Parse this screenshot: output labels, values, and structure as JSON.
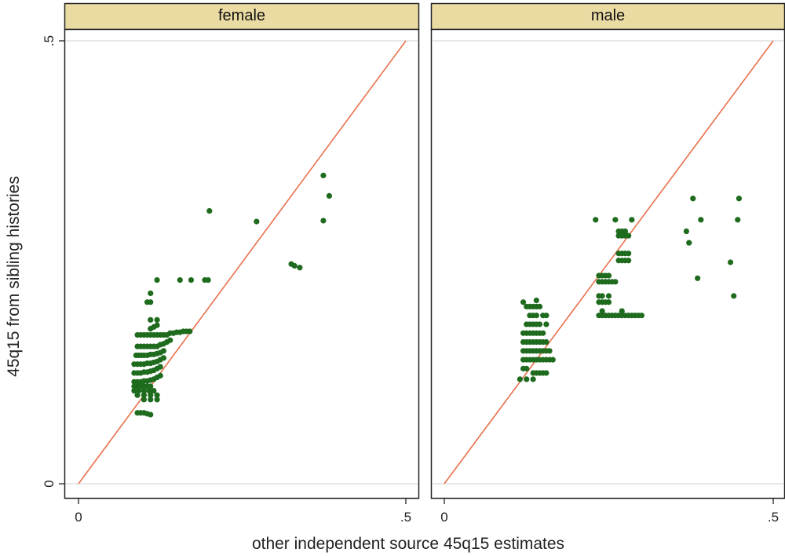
{
  "chart_data": {
    "type": "scatter",
    "xlabel": "other independent source 45q15 estimates",
    "ylabel": "45q15 from sibling histories",
    "xlim": [
      0,
      0.5
    ],
    "ylim": [
      0,
      0.5
    ],
    "x_ticks": [
      {
        "value": 0,
        "label": "0"
      },
      {
        "value": 0.5,
        "label": ".5"
      }
    ],
    "y_ticks": [
      {
        "value": 0,
        "label": "0"
      },
      {
        "value": 0.5,
        "label": ".5"
      }
    ],
    "reference_line": {
      "type": "identity",
      "from": [
        0,
        0
      ],
      "to": [
        0.5,
        0.5
      ],
      "color": "#e8704c"
    },
    "marker_color": "#1e6b1e",
    "header_color": "#eadba3",
    "panels": [
      {
        "title": "female",
        "points": [
          [
            0.09,
            0.168
          ],
          [
            0.095,
            0.168
          ],
          [
            0.1,
            0.168
          ],
          [
            0.105,
            0.168
          ],
          [
            0.11,
            0.168
          ],
          [
            0.115,
            0.168
          ],
          [
            0.12,
            0.168
          ],
          [
            0.125,
            0.168
          ],
          [
            0.13,
            0.168
          ],
          [
            0.135,
            0.168
          ],
          [
            0.14,
            0.17
          ],
          [
            0.145,
            0.17
          ],
          [
            0.15,
            0.171
          ],
          [
            0.155,
            0.171
          ],
          [
            0.16,
            0.172
          ],
          [
            0.165,
            0.172
          ],
          [
            0.17,
            0.172
          ],
          [
            0.09,
            0.155
          ],
          [
            0.095,
            0.155
          ],
          [
            0.1,
            0.155
          ],
          [
            0.105,
            0.155
          ],
          [
            0.11,
            0.155
          ],
          [
            0.115,
            0.155
          ],
          [
            0.12,
            0.155
          ],
          [
            0.125,
            0.157
          ],
          [
            0.13,
            0.158
          ],
          [
            0.135,
            0.16
          ],
          [
            0.14,
            0.162
          ],
          [
            0.088,
            0.145
          ],
          [
            0.092,
            0.145
          ],
          [
            0.096,
            0.145
          ],
          [
            0.1,
            0.145
          ],
          [
            0.105,
            0.145
          ],
          [
            0.11,
            0.146
          ],
          [
            0.115,
            0.146
          ],
          [
            0.12,
            0.147
          ],
          [
            0.125,
            0.148
          ],
          [
            0.13,
            0.15
          ],
          [
            0.085,
            0.135
          ],
          [
            0.09,
            0.135
          ],
          [
            0.095,
            0.135
          ],
          [
            0.1,
            0.135
          ],
          [
            0.105,
            0.136
          ],
          [
            0.11,
            0.136
          ],
          [
            0.115,
            0.137
          ],
          [
            0.12,
            0.138
          ],
          [
            0.125,
            0.14
          ],
          [
            0.13,
            0.142
          ],
          [
            0.085,
            0.125
          ],
          [
            0.09,
            0.125
          ],
          [
            0.095,
            0.125
          ],
          [
            0.1,
            0.126
          ],
          [
            0.105,
            0.126
          ],
          [
            0.11,
            0.127
          ],
          [
            0.115,
            0.128
          ],
          [
            0.12,
            0.13
          ],
          [
            0.125,
            0.132
          ],
          [
            0.085,
            0.115
          ],
          [
            0.09,
            0.115
          ],
          [
            0.095,
            0.115
          ],
          [
            0.1,
            0.116
          ],
          [
            0.105,
            0.116
          ],
          [
            0.11,
            0.117
          ],
          [
            0.115,
            0.118
          ],
          [
            0.12,
            0.12
          ],
          [
            0.125,
            0.122
          ],
          [
            0.085,
            0.11
          ],
          [
            0.09,
            0.11
          ],
          [
            0.095,
            0.11
          ],
          [
            0.1,
            0.11
          ],
          [
            0.105,
            0.11
          ],
          [
            0.11,
            0.11
          ],
          [
            0.085,
            0.105
          ],
          [
            0.092,
            0.105
          ],
          [
            0.1,
            0.105
          ],
          [
            0.108,
            0.105
          ],
          [
            0.115,
            0.105
          ],
          [
            0.09,
            0.1
          ],
          [
            0.1,
            0.1
          ],
          [
            0.11,
            0.1
          ],
          [
            0.12,
            0.1
          ],
          [
            0.1,
            0.095
          ],
          [
            0.11,
            0.095
          ],
          [
            0.12,
            0.095
          ],
          [
            0.11,
            0.175
          ],
          [
            0.115,
            0.177
          ],
          [
            0.12,
            0.179
          ],
          [
            0.11,
            0.185
          ],
          [
            0.12,
            0.185
          ],
          [
            0.105,
            0.205
          ],
          [
            0.11,
            0.205
          ],
          [
            0.11,
            0.215
          ],
          [
            0.12,
            0.23
          ],
          [
            0.155,
            0.23
          ],
          [
            0.172,
            0.23
          ],
          [
            0.193,
            0.23
          ],
          [
            0.198,
            0.23
          ],
          [
            0.09,
            0.08
          ],
          [
            0.095,
            0.08
          ],
          [
            0.1,
            0.08
          ],
          [
            0.105,
            0.079
          ],
          [
            0.11,
            0.078
          ],
          [
            0.2,
            0.308
          ],
          [
            0.272,
            0.296
          ],
          [
            0.325,
            0.248
          ],
          [
            0.33,
            0.246
          ],
          [
            0.338,
            0.244
          ],
          [
            0.374,
            0.348
          ],
          [
            0.383,
            0.325
          ],
          [
            0.374,
            0.297
          ]
        ]
      },
      {
        "title": "male",
        "points": [
          [
            0.12,
            0.14
          ],
          [
            0.125,
            0.14
          ],
          [
            0.13,
            0.14
          ],
          [
            0.135,
            0.14
          ],
          [
            0.14,
            0.14
          ],
          [
            0.145,
            0.14
          ],
          [
            0.15,
            0.14
          ],
          [
            0.155,
            0.14
          ],
          [
            0.16,
            0.14
          ],
          [
            0.165,
            0.14
          ],
          [
            0.12,
            0.15
          ],
          [
            0.125,
            0.15
          ],
          [
            0.13,
            0.15
          ],
          [
            0.135,
            0.15
          ],
          [
            0.14,
            0.15
          ],
          [
            0.145,
            0.15
          ],
          [
            0.15,
            0.15
          ],
          [
            0.155,
            0.15
          ],
          [
            0.16,
            0.15
          ],
          [
            0.12,
            0.16
          ],
          [
            0.125,
            0.16
          ],
          [
            0.13,
            0.16
          ],
          [
            0.135,
            0.16
          ],
          [
            0.14,
            0.16
          ],
          [
            0.145,
            0.16
          ],
          [
            0.15,
            0.16
          ],
          [
            0.155,
            0.16
          ],
          [
            0.12,
            0.17
          ],
          [
            0.125,
            0.17
          ],
          [
            0.13,
            0.17
          ],
          [
            0.135,
            0.17
          ],
          [
            0.14,
            0.17
          ],
          [
            0.145,
            0.17
          ],
          [
            0.15,
            0.17
          ],
          [
            0.125,
            0.18
          ],
          [
            0.13,
            0.18
          ],
          [
            0.135,
            0.18
          ],
          [
            0.14,
            0.18
          ],
          [
            0.145,
            0.18
          ],
          [
            0.155,
            0.18
          ],
          [
            0.13,
            0.19
          ],
          [
            0.135,
            0.19
          ],
          [
            0.14,
            0.19
          ],
          [
            0.15,
            0.19
          ],
          [
            0.155,
            0.19
          ],
          [
            0.125,
            0.2
          ],
          [
            0.13,
            0.2
          ],
          [
            0.135,
            0.2
          ],
          [
            0.14,
            0.2
          ],
          [
            0.145,
            0.2
          ],
          [
            0.12,
            0.205
          ],
          [
            0.14,
            0.207
          ],
          [
            0.135,
            0.125
          ],
          [
            0.14,
            0.125
          ],
          [
            0.145,
            0.125
          ],
          [
            0.15,
            0.125
          ],
          [
            0.155,
            0.125
          ],
          [
            0.12,
            0.13
          ],
          [
            0.125,
            0.13
          ],
          [
            0.115,
            0.118
          ],
          [
            0.125,
            0.118
          ],
          [
            0.135,
            0.118
          ],
          [
            0.235,
            0.19
          ],
          [
            0.24,
            0.19
          ],
          [
            0.245,
            0.19
          ],
          [
            0.25,
            0.19
          ],
          [
            0.255,
            0.19
          ],
          [
            0.26,
            0.19
          ],
          [
            0.265,
            0.19
          ],
          [
            0.27,
            0.19
          ],
          [
            0.275,
            0.19
          ],
          [
            0.28,
            0.19
          ],
          [
            0.285,
            0.19
          ],
          [
            0.29,
            0.19
          ],
          [
            0.295,
            0.19
          ],
          [
            0.3,
            0.19
          ],
          [
            0.24,
            0.195
          ],
          [
            0.27,
            0.195
          ],
          [
            0.235,
            0.205
          ],
          [
            0.24,
            0.205
          ],
          [
            0.245,
            0.205
          ],
          [
            0.25,
            0.205
          ],
          [
            0.235,
            0.212
          ],
          [
            0.24,
            0.212
          ],
          [
            0.25,
            0.212
          ],
          [
            0.235,
            0.228
          ],
          [
            0.24,
            0.228
          ],
          [
            0.245,
            0.228
          ],
          [
            0.25,
            0.228
          ],
          [
            0.255,
            0.228
          ],
          [
            0.26,
            0.228
          ],
          [
            0.235,
            0.235
          ],
          [
            0.24,
            0.235
          ],
          [
            0.245,
            0.235
          ],
          [
            0.25,
            0.235
          ],
          [
            0.265,
            0.252
          ],
          [
            0.27,
            0.252
          ],
          [
            0.275,
            0.252
          ],
          [
            0.28,
            0.252
          ],
          [
            0.265,
            0.26
          ],
          [
            0.27,
            0.26
          ],
          [
            0.275,
            0.26
          ],
          [
            0.28,
            0.26
          ],
          [
            0.265,
            0.28
          ],
          [
            0.27,
            0.28
          ],
          [
            0.275,
            0.28
          ],
          [
            0.28,
            0.28
          ],
          [
            0.265,
            0.285
          ],
          [
            0.27,
            0.285
          ],
          [
            0.275,
            0.285
          ],
          [
            0.23,
            0.298
          ],
          [
            0.26,
            0.298
          ],
          [
            0.285,
            0.298
          ],
          [
            0.368,
            0.285
          ],
          [
            0.372,
            0.272
          ],
          [
            0.378,
            0.322
          ],
          [
            0.39,
            0.298
          ],
          [
            0.385,
            0.232
          ],
          [
            0.435,
            0.25
          ],
          [
            0.44,
            0.212
          ],
          [
            0.448,
            0.322
          ],
          [
            0.446,
            0.298
          ]
        ]
      }
    ]
  }
}
